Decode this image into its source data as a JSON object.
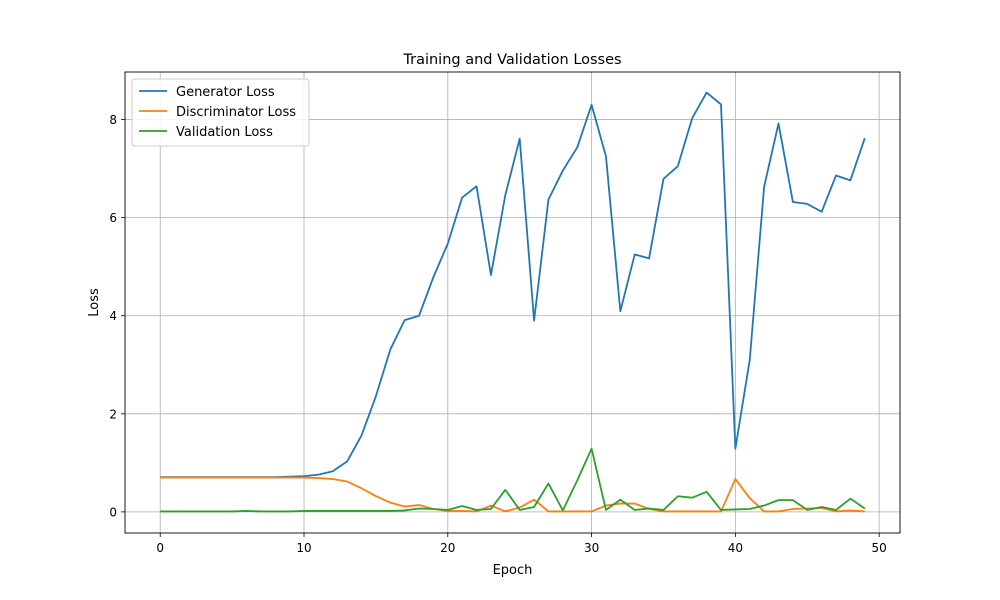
{
  "chart_data": {
    "type": "line",
    "title": "Training and Validation Losses",
    "xlabel": "Epoch",
    "ylabel": "Loss",
    "xlim": [
      -2.45,
      51.45
    ],
    "ylim": [
      -0.43,
      8.97
    ],
    "grid": true,
    "legend_position": "upper-left",
    "xticks": [
      0,
      10,
      20,
      30,
      40,
      50
    ],
    "yticks": [
      0,
      2,
      4,
      6,
      8
    ],
    "x": [
      0,
      1,
      2,
      3,
      4,
      5,
      6,
      7,
      8,
      9,
      10,
      11,
      12,
      13,
      14,
      15,
      16,
      17,
      18,
      19,
      20,
      21,
      22,
      23,
      24,
      25,
      26,
      27,
      28,
      29,
      30,
      31,
      32,
      33,
      34,
      35,
      36,
      37,
      38,
      39,
      40,
      41,
      42,
      43,
      44,
      45,
      46,
      47,
      48,
      49
    ],
    "series": [
      {
        "name": "Generator Loss",
        "color": "#1f77b4",
        "values": [
          0.71,
          0.71,
          0.71,
          0.71,
          0.71,
          0.71,
          0.71,
          0.71,
          0.71,
          0.72,
          0.73,
          0.76,
          0.83,
          1.03,
          1.56,
          2.36,
          3.31,
          3.91,
          4.0,
          4.79,
          5.47,
          6.41,
          6.64,
          4.83,
          6.46,
          7.61,
          3.9,
          6.37,
          6.96,
          7.43,
          8.3,
          7.25,
          4.09,
          5.25,
          5.17,
          6.79,
          7.05,
          8.03,
          8.55,
          8.31,
          1.29,
          3.1,
          6.63,
          7.92,
          6.32,
          6.28,
          6.12,
          6.86,
          6.76,
          7.62
        ]
      },
      {
        "name": "Discriminator Loss",
        "color": "#ff7f0e",
        "values": [
          0.7,
          0.7,
          0.7,
          0.7,
          0.7,
          0.7,
          0.7,
          0.7,
          0.7,
          0.7,
          0.7,
          0.69,
          0.67,
          0.62,
          0.48,
          0.32,
          0.19,
          0.11,
          0.14,
          0.06,
          0.02,
          0.02,
          0.01,
          0.13,
          0.01,
          0.09,
          0.25,
          0.01,
          0.01,
          0.01,
          0.01,
          0.13,
          0.17,
          0.17,
          0.06,
          0.01,
          0.01,
          0.01,
          0.01,
          0.01,
          0.67,
          0.28,
          0.01,
          0.01,
          0.06,
          0.07,
          0.08,
          0.01,
          0.03,
          0.01
        ]
      },
      {
        "name": "Validation Loss",
        "color": "#2ca02c",
        "values": [
          0.01,
          0.01,
          0.01,
          0.01,
          0.01,
          0.01,
          0.02,
          0.01,
          0.01,
          0.01,
          0.02,
          0.02,
          0.02,
          0.02,
          0.02,
          0.02,
          0.02,
          0.03,
          0.07,
          0.06,
          0.04,
          0.12,
          0.04,
          0.06,
          0.45,
          0.04,
          0.1,
          0.58,
          0.03,
          0.64,
          1.29,
          0.04,
          0.25,
          0.04,
          0.07,
          0.04,
          0.32,
          0.29,
          0.41,
          0.04,
          0.05,
          0.06,
          0.13,
          0.24,
          0.24,
          0.04,
          0.1,
          0.04,
          0.27,
          0.07
        ]
      }
    ]
  }
}
